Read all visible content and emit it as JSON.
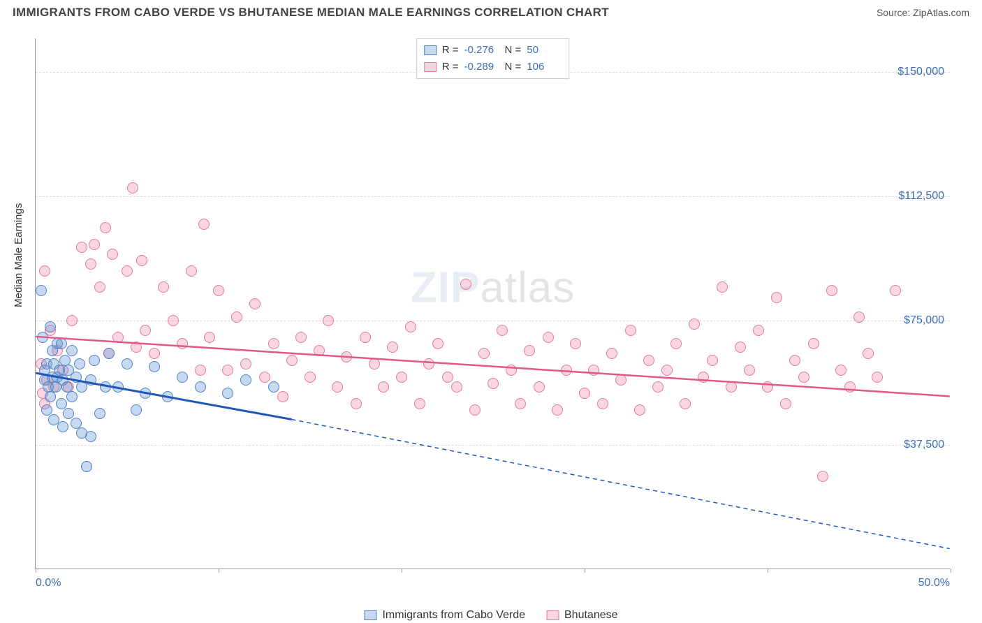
{
  "header": {
    "title": "IMMIGRANTS FROM CABO VERDE VS BHUTANESE MEDIAN MALE EARNINGS CORRELATION CHART",
    "source": "Source: ZipAtlas.com"
  },
  "watermark": {
    "zip": "ZIP",
    "rest": "atlas"
  },
  "chart": {
    "type": "scatter",
    "y_axis_label": "Median Male Earnings",
    "x_range": [
      0,
      50
    ],
    "y_range": [
      0,
      160000
    ],
    "y_ticks": [
      {
        "value": 37500,
        "label": "$37,500"
      },
      {
        "value": 75000,
        "label": "$75,000"
      },
      {
        "value": 112500,
        "label": "$112,500"
      },
      {
        "value": 150000,
        "label": "$150,000"
      }
    ],
    "x_ticks_pct": [
      0,
      10,
      20,
      30,
      40,
      50
    ],
    "x_min_label": "0.0%",
    "x_max_label": "50.0%",
    "colors": {
      "series1_fill": "rgba(93,145,211,0.35)",
      "series1_stroke": "#4d84c7",
      "series1_line": "#1f58b8",
      "series2_fill": "rgba(236,120,160,0.30)",
      "series2_stroke": "#e47a9e",
      "series2_line": "#e25688",
      "tick_label": "#3b6db8",
      "grid": "#dddddd"
    },
    "marker_radius": 8,
    "legend_top": {
      "rows": [
        {
          "swatch": "series1",
          "r_label": "R =",
          "r_value": "-0.276",
          "n_label": "N =",
          "n_value": "50"
        },
        {
          "swatch": "series2",
          "r_label": "R =",
          "r_value": "-0.289",
          "n_label": "N =",
          "n_value": "106"
        }
      ]
    },
    "legend_bottom": {
      "items": [
        {
          "swatch": "series1",
          "label": "Immigrants from Cabo Verde"
        },
        {
          "swatch": "series2",
          "label": "Bhutanese"
        }
      ]
    },
    "trend_lines": {
      "series1": {
        "x1": 0,
        "y1": 59000,
        "x2_solid": 14,
        "y2_solid": 45000,
        "x2_dash": 50,
        "y2_dash": 6000
      },
      "series2": {
        "x1": 0,
        "y1": 70000,
        "x2": 50,
        "y2": 52000
      }
    },
    "series1_points": [
      [
        0.3,
        84000
      ],
      [
        0.4,
        70000
      ],
      [
        0.5,
        60000
      ],
      [
        0.5,
        57000
      ],
      [
        0.6,
        62000
      ],
      [
        0.6,
        48000
      ],
      [
        0.7,
        55000
      ],
      [
        0.8,
        73000
      ],
      [
        0.8,
        52000
      ],
      [
        0.9,
        66000
      ],
      [
        0.9,
        58000
      ],
      [
        1.0,
        45000
      ],
      [
        1.0,
        62000
      ],
      [
        1.1,
        55000
      ],
      [
        1.2,
        68000
      ],
      [
        1.2,
        58000
      ],
      [
        1.3,
        60000
      ],
      [
        1.4,
        50000
      ],
      [
        1.4,
        68000
      ],
      [
        1.5,
        43000
      ],
      [
        1.5,
        57000
      ],
      [
        1.6,
        63000
      ],
      [
        1.7,
        55000
      ],
      [
        1.8,
        47000
      ],
      [
        1.8,
        60000
      ],
      [
        2.0,
        66000
      ],
      [
        2.0,
        52000
      ],
      [
        2.2,
        44000
      ],
      [
        2.2,
        58000
      ],
      [
        2.4,
        62000
      ],
      [
        2.5,
        41000
      ],
      [
        2.5,
        55000
      ],
      [
        2.8,
        31000
      ],
      [
        3.0,
        40000
      ],
      [
        3.0,
        57000
      ],
      [
        3.2,
        63000
      ],
      [
        3.5,
        47000
      ],
      [
        3.8,
        55000
      ],
      [
        4.0,
        65000
      ],
      [
        4.5,
        55000
      ],
      [
        5.0,
        62000
      ],
      [
        5.5,
        48000
      ],
      [
        6.0,
        53000
      ],
      [
        6.5,
        61000
      ],
      [
        7.2,
        52000
      ],
      [
        8.0,
        58000
      ],
      [
        9.0,
        55000
      ],
      [
        10.5,
        53000
      ],
      [
        11.5,
        57000
      ],
      [
        13.0,
        55000
      ]
    ],
    "series2_points": [
      [
        0.3,
        62000
      ],
      [
        0.4,
        53000
      ],
      [
        0.5,
        50000
      ],
      [
        0.5,
        90000
      ],
      [
        0.6,
        57000
      ],
      [
        0.8,
        72000
      ],
      [
        1.0,
        55000
      ],
      [
        1.2,
        66000
      ],
      [
        1.5,
        60000
      ],
      [
        1.8,
        55000
      ],
      [
        2.0,
        75000
      ],
      [
        2.5,
        97000
      ],
      [
        3.0,
        92000
      ],
      [
        3.2,
        98000
      ],
      [
        3.5,
        85000
      ],
      [
        3.8,
        103000
      ],
      [
        4.0,
        65000
      ],
      [
        4.2,
        95000
      ],
      [
        4.5,
        70000
      ],
      [
        5.0,
        90000
      ],
      [
        5.3,
        115000
      ],
      [
        5.5,
        67000
      ],
      [
        5.8,
        93000
      ],
      [
        6.0,
        72000
      ],
      [
        6.5,
        65000
      ],
      [
        7.0,
        85000
      ],
      [
        7.5,
        75000
      ],
      [
        8.0,
        68000
      ],
      [
        8.5,
        90000
      ],
      [
        9.0,
        60000
      ],
      [
        9.2,
        104000
      ],
      [
        9.5,
        70000
      ],
      [
        10.0,
        84000
      ],
      [
        10.5,
        60000
      ],
      [
        11.0,
        76000
      ],
      [
        11.5,
        62000
      ],
      [
        12.0,
        80000
      ],
      [
        12.5,
        58000
      ],
      [
        13.0,
        68000
      ],
      [
        13.5,
        52000
      ],
      [
        14.0,
        63000
      ],
      [
        14.5,
        70000
      ],
      [
        15.0,
        58000
      ],
      [
        15.5,
        66000
      ],
      [
        16.0,
        75000
      ],
      [
        16.5,
        55000
      ],
      [
        17.0,
        64000
      ],
      [
        17.5,
        50000
      ],
      [
        18.0,
        70000
      ],
      [
        18.5,
        62000
      ],
      [
        19.0,
        55000
      ],
      [
        19.5,
        67000
      ],
      [
        20.0,
        58000
      ],
      [
        20.5,
        73000
      ],
      [
        21.0,
        50000
      ],
      [
        21.5,
        62000
      ],
      [
        22.0,
        68000
      ],
      [
        22.5,
        58000
      ],
      [
        23.0,
        55000
      ],
      [
        23.5,
        86000
      ],
      [
        24.0,
        48000
      ],
      [
        24.5,
        65000
      ],
      [
        25.0,
        56000
      ],
      [
        25.5,
        72000
      ],
      [
        26.0,
        60000
      ],
      [
        26.5,
        50000
      ],
      [
        27.0,
        66000
      ],
      [
        27.5,
        55000
      ],
      [
        28.0,
        70000
      ],
      [
        28.5,
        48000
      ],
      [
        29.0,
        60000
      ],
      [
        29.5,
        68000
      ],
      [
        30.0,
        53000
      ],
      [
        30.5,
        60000
      ],
      [
        31.0,
        50000
      ],
      [
        31.5,
        65000
      ],
      [
        32.0,
        57000
      ],
      [
        32.5,
        72000
      ],
      [
        33.0,
        48000
      ],
      [
        33.5,
        63000
      ],
      [
        34.0,
        55000
      ],
      [
        34.5,
        60000
      ],
      [
        35.0,
        68000
      ],
      [
        35.5,
        50000
      ],
      [
        36.0,
        74000
      ],
      [
        36.5,
        58000
      ],
      [
        37.0,
        63000
      ],
      [
        37.5,
        85000
      ],
      [
        38.0,
        55000
      ],
      [
        38.5,
        67000
      ],
      [
        39.0,
        60000
      ],
      [
        39.5,
        72000
      ],
      [
        40.0,
        55000
      ],
      [
        40.5,
        82000
      ],
      [
        41.0,
        50000
      ],
      [
        41.5,
        63000
      ],
      [
        42.0,
        58000
      ],
      [
        42.5,
        68000
      ],
      [
        43.0,
        28000
      ],
      [
        43.5,
        84000
      ],
      [
        44.0,
        60000
      ],
      [
        44.5,
        55000
      ],
      [
        45.0,
        76000
      ],
      [
        45.5,
        65000
      ],
      [
        46.0,
        58000
      ],
      [
        47.0,
        84000
      ]
    ]
  }
}
